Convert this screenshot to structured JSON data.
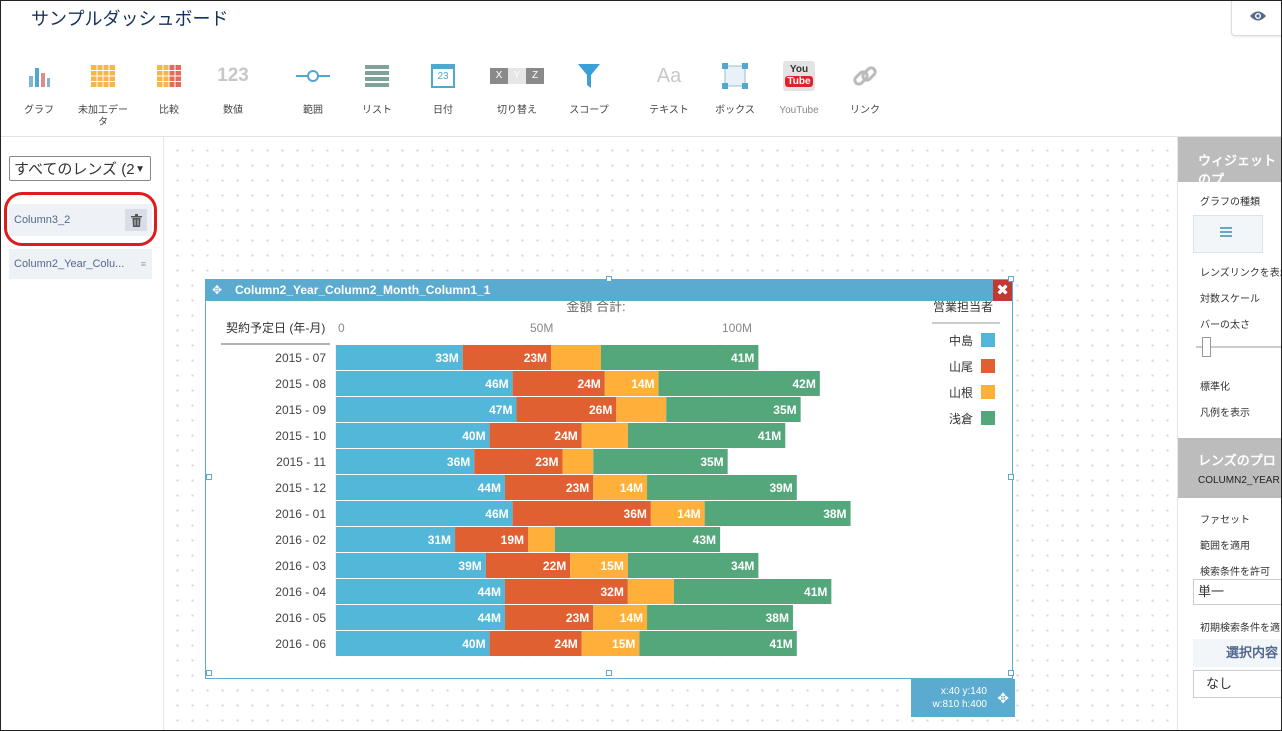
{
  "app": {
    "title": "サンプルダッシュボード"
  },
  "toolbar": {
    "items": [
      {
        "label": "グラフ",
        "icon": "bar-chart-icon"
      },
      {
        "label": "未加工データ",
        "icon": "raw-data-grid-icon"
      },
      {
        "label": "比較",
        "icon": "compare-table-icon"
      },
      {
        "label": "数値",
        "icon": "number-123-icon"
      },
      {
        "label": "範囲",
        "icon": "range-slider-icon"
      },
      {
        "label": "リスト",
        "icon": "list-icon"
      },
      {
        "label": "日付",
        "icon": "calendar-icon"
      },
      {
        "label": "切り替え",
        "icon": "xyz-toggle-icon"
      },
      {
        "label": "スコープ",
        "icon": "funnel-icon"
      },
      {
        "label": "テキスト",
        "icon": "text-aa-icon"
      },
      {
        "label": "ボックス",
        "icon": "box-icon"
      },
      {
        "label": "YouTube",
        "icon": "youtube-icon"
      },
      {
        "label": "リンク",
        "icon": "link-icon"
      }
    ],
    "number_glyph": "123",
    "text_glyph": "Aa",
    "date_glyph": "23",
    "toggle_glyphs": [
      "X",
      "Y",
      "Z"
    ],
    "youtube_glyph_top": "You",
    "youtube_glyph_bottom": "Tube"
  },
  "lens_panel": {
    "selector_value": "すべてのレンズ (2",
    "items": [
      "Column3_2",
      "Column2_Year_Colu..."
    ]
  },
  "widget": {
    "name": "Column2_Year_Column2_Month_Column1_1",
    "position_line": "x:40 y:140",
    "size_line": "w:810 h:400"
  },
  "chart_data": {
    "type": "bar",
    "orientation": "horizontal",
    "stacked": true,
    "title": "金額 合計:",
    "ylabel": "契約予定日 (年-月)",
    "xlim": [
      0,
      150
    ],
    "xticks": [
      "0",
      "50M",
      "100M"
    ],
    "grid": true,
    "legend_title": "営業担当者",
    "legend_position": "top-right",
    "categories": [
      "2015 - 07",
      "2015 - 08",
      "2015 - 09",
      "2015 - 10",
      "2015 - 11",
      "2015 - 12",
      "2016 - 01",
      "2016 - 02",
      "2016 - 03",
      "2016 - 04",
      "2016 - 05",
      "2016 - 06"
    ],
    "series": [
      {
        "name": "中島",
        "color": "#52b7d8",
        "values": [
          33,
          46,
          47,
          40,
          36,
          44,
          46,
          31,
          39,
          44,
          44,
          40
        ],
        "labels": [
          "33M",
          "46M",
          "47M",
          "40M",
          "36M",
          "44M",
          "46M",
          "31M",
          "39M",
          "44M",
          "44M",
          "40M"
        ]
      },
      {
        "name": "山尾",
        "color": "#e16032",
        "values": [
          23,
          24,
          26,
          24,
          23,
          23,
          36,
          19,
          22,
          32,
          23,
          24
        ],
        "labels": [
          "23M",
          "24M",
          "26M",
          "24M",
          "23M",
          "23M",
          "36M",
          "19M",
          "22M",
          "32M",
          "23M",
          "24M"
        ]
      },
      {
        "name": "山根",
        "color": "#ffb03b",
        "values": [
          13,
          14,
          13,
          12,
          8,
          14,
          14,
          7,
          15,
          12,
          14,
          15
        ],
        "labels": [
          "",
          "14M",
          "",
          "",
          "",
          "14M",
          "14M",
          "",
          "15M",
          "",
          "14M",
          "15M"
        ]
      },
      {
        "name": "浅倉",
        "color": "#54a77b",
        "values": [
          41,
          42,
          35,
          41,
          35,
          39,
          38,
          43,
          34,
          41,
          38,
          41
        ],
        "labels": [
          "41M",
          "42M",
          "35M",
          "41M",
          "35M",
          "39M",
          "38M",
          "43M",
          "34M",
          "41M",
          "38M",
          "41M"
        ]
      }
    ]
  },
  "properties_panel": {
    "widget_section_title": "ウィジェットのプ",
    "chart_type_label": "グラフの種類",
    "lens_link_label": "レンズリンクを表示",
    "log_scale_label": "対数スケール",
    "bar_width_label": "バーの太さ",
    "normalize_label": "標準化",
    "legend_label": "凡例を表示",
    "lens_section_title": "レンズのプロ",
    "lens_section_subtitle": "COLUMN2_YEAR",
    "facet_label": "ファセット",
    "apply_range_label": "範囲を適用",
    "allow_search_label": "検索条件を許可",
    "search_mode_value": "単一",
    "initial_search_label": "初期検索条件を適",
    "selection_header": "選択内容",
    "selection_value": "なし"
  }
}
